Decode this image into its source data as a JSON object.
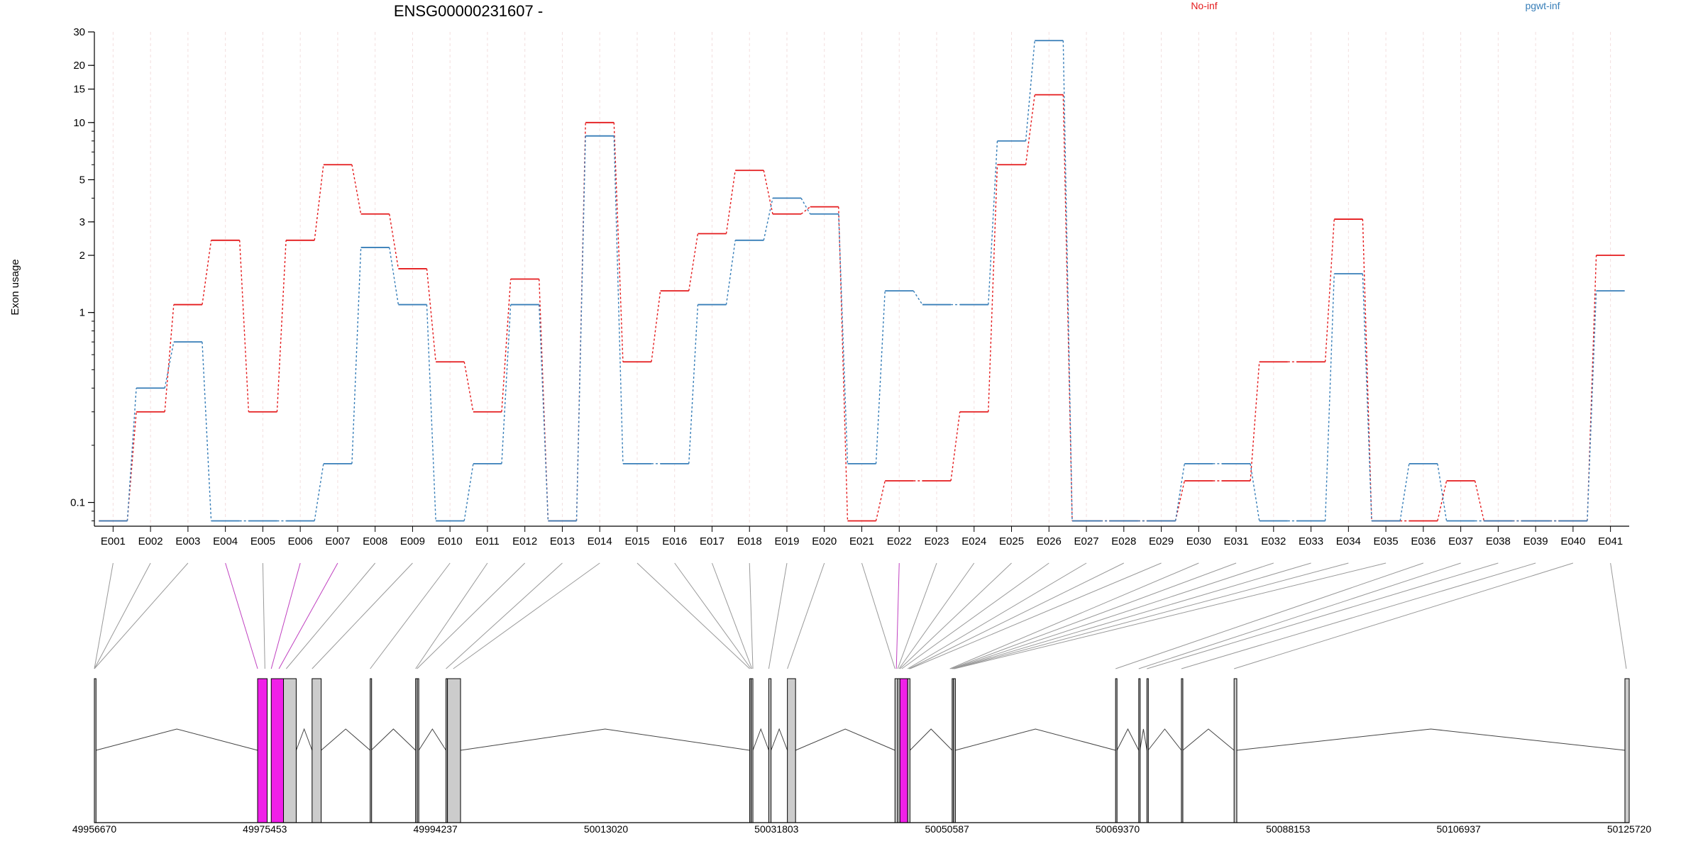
{
  "chart_data": {
    "type": "line",
    "title": "ENSG00000231607 -",
    "ylabel": "Exon usage",
    "y_scale": "log",
    "ylim": [
      0.075,
      30
    ],
    "yticks": [
      0.1,
      1,
      2,
      3,
      5,
      10,
      15,
      20,
      30
    ],
    "ytick_labels": [
      "0.1",
      "1",
      "2",
      "3",
      "5",
      "10",
      "15",
      "20",
      "30"
    ],
    "legend_placement": "top-right",
    "categories": [
      "E001",
      "E002",
      "E003",
      "E004",
      "E005",
      "E006",
      "E007",
      "E008",
      "E009",
      "E010",
      "E011",
      "E012",
      "E013",
      "E014",
      "E015",
      "E016",
      "E017",
      "E018",
      "E019",
      "E020",
      "E021",
      "E022",
      "E023",
      "E024",
      "E025",
      "E026",
      "E027",
      "E028",
      "E029",
      "E030",
      "E031",
      "E032",
      "E033",
      "E034",
      "E035",
      "E036",
      "E037",
      "E038",
      "E039",
      "E040",
      "E041"
    ],
    "series": [
      {
        "name": "No-inf",
        "color": "#e41a1c",
        "values": [
          0.08,
          0.3,
          1.1,
          2.4,
          0.3,
          2.4,
          6.0,
          3.3,
          1.7,
          0.55,
          0.3,
          1.5,
          0.08,
          10.0,
          0.55,
          1.3,
          2.6,
          5.6,
          3.3,
          3.6,
          0.08,
          0.13,
          0.13,
          0.3,
          6.0,
          14.0,
          0.08,
          0.08,
          0.08,
          0.13,
          0.13,
          0.55,
          0.55,
          3.1,
          0.08,
          0.08,
          0.13,
          0.08,
          0.08,
          0.08,
          2.0
        ]
      },
      {
        "name": "pgwt-inf",
        "color": "#377eb8",
        "values": [
          0.08,
          0.4,
          0.7,
          0.08,
          0.08,
          0.08,
          0.16,
          2.2,
          1.1,
          0.08,
          0.16,
          1.1,
          0.08,
          8.5,
          0.16,
          0.16,
          1.1,
          2.4,
          4.0,
          3.3,
          0.16,
          1.3,
          1.1,
          1.1,
          8.0,
          27.0,
          0.08,
          0.08,
          0.08,
          0.16,
          0.16,
          0.08,
          0.08,
          1.6,
          0.08,
          0.16,
          0.08,
          0.08,
          0.08,
          0.08,
          1.3
        ]
      }
    ],
    "highlighted_exons": [
      "E004",
      "E006",
      "E007",
      "E022"
    ],
    "gene_model": {
      "start": 49956670,
      "end": 50125720,
      "coordinate_ticks": [
        "49956670",
        "49975453",
        "49994237",
        "50013020",
        "50031803",
        "50050587",
        "50069370",
        "50088153",
        "50106937",
        "50125720"
      ],
      "exons": [
        {
          "start": 49956670,
          "end": 49956850,
          "highlight": false
        },
        {
          "start": 49974650,
          "end": 49975700,
          "highlight": true
        },
        {
          "start": 49976150,
          "end": 49977500,
          "highlight": true
        },
        {
          "start": 49977500,
          "end": 49978900,
          "highlight": false
        },
        {
          "start": 49980650,
          "end": 49981650,
          "highlight": false
        },
        {
          "start": 49987050,
          "end": 49987160,
          "highlight": false
        },
        {
          "start": 49992050,
          "end": 49992230,
          "highlight": false
        },
        {
          "start": 49992230,
          "end": 49992400,
          "highlight": false
        },
        {
          "start": 49995400,
          "end": 49995560,
          "highlight": false
        },
        {
          "start": 49995560,
          "end": 49997000,
          "highlight": false
        },
        {
          "start": 50028850,
          "end": 50029010,
          "highlight": false
        },
        {
          "start": 50029010,
          "end": 50029200,
          "highlight": false
        },
        {
          "start": 50030950,
          "end": 50031200,
          "highlight": false
        },
        {
          "start": 50033000,
          "end": 50033900,
          "highlight": false
        },
        {
          "start": 50044850,
          "end": 50045150,
          "highlight": false
        },
        {
          "start": 50045150,
          "end": 50045400,
          "highlight": false
        },
        {
          "start": 50045400,
          "end": 50046250,
          "highlight": true
        },
        {
          "start": 50046250,
          "end": 50046500,
          "highlight": false
        },
        {
          "start": 50051150,
          "end": 50051300,
          "highlight": false
        },
        {
          "start": 50051300,
          "end": 50051500,
          "highlight": false
        },
        {
          "start": 50069150,
          "end": 50069300,
          "highlight": false
        },
        {
          "start": 50071700,
          "end": 50071830,
          "highlight": false
        },
        {
          "start": 50072600,
          "end": 50072730,
          "highlight": false
        },
        {
          "start": 50076400,
          "end": 50076550,
          "highlight": false
        },
        {
          "start": 50082200,
          "end": 50082500,
          "highlight": false
        },
        {
          "start": 50125250,
          "end": 50125720,
          "highlight": false
        }
      ],
      "exon_links": [
        {
          "exon": "E001",
          "pos": 49956670
        },
        {
          "exon": "E002",
          "pos": 49956670
        },
        {
          "exon": "E003",
          "pos": 49956670
        },
        {
          "exon": "E004",
          "pos": 49974650
        },
        {
          "exon": "E005",
          "pos": 49975453
        },
        {
          "exon": "E006",
          "pos": 49976150
        },
        {
          "exon": "E007",
          "pos": 49977000
        },
        {
          "exon": "E008",
          "pos": 49977800
        },
        {
          "exon": "E009",
          "pos": 49980650
        },
        {
          "exon": "E010",
          "pos": 49987050
        },
        {
          "exon": "E011",
          "pos": 49992050
        },
        {
          "exon": "E012",
          "pos": 49992200
        },
        {
          "exon": "E013",
          "pos": 49995400
        },
        {
          "exon": "E014",
          "pos": 49996200
        },
        {
          "exon": "E015",
          "pos": 50028850
        },
        {
          "exon": "E016",
          "pos": 50029000
        },
        {
          "exon": "E017",
          "pos": 50029100
        },
        {
          "exon": "E018",
          "pos": 50029200
        },
        {
          "exon": "E019",
          "pos": 50030950
        },
        {
          "exon": "E020",
          "pos": 50033000
        },
        {
          "exon": "E021",
          "pos": 50044850
        },
        {
          "exon": "E022",
          "pos": 50045000
        },
        {
          "exon": "E023",
          "pos": 50045150
        },
        {
          "exon": "E024",
          "pos": 50045300
        },
        {
          "exon": "E025",
          "pos": 50045400
        },
        {
          "exon": "E026",
          "pos": 50045600
        },
        {
          "exon": "E027",
          "pos": 50046250
        },
        {
          "exon": "E028",
          "pos": 50046400
        },
        {
          "exon": "E029",
          "pos": 50046500
        },
        {
          "exon": "E030",
          "pos": 50050900
        },
        {
          "exon": "E031",
          "pos": 50051050
        },
        {
          "exon": "E032",
          "pos": 50051150
        },
        {
          "exon": "E033",
          "pos": 50051250
        },
        {
          "exon": "E034",
          "pos": 50051300
        },
        {
          "exon": "E035",
          "pos": 50051400
        },
        {
          "exon": "E036",
          "pos": 50069150
        },
        {
          "exon": "E037",
          "pos": 50071700
        },
        {
          "exon": "E038",
          "pos": 50072600
        },
        {
          "exon": "E039",
          "pos": 50076400
        },
        {
          "exon": "E040",
          "pos": 50082200
        },
        {
          "exon": "E041",
          "pos": 50125400
        }
      ]
    }
  }
}
